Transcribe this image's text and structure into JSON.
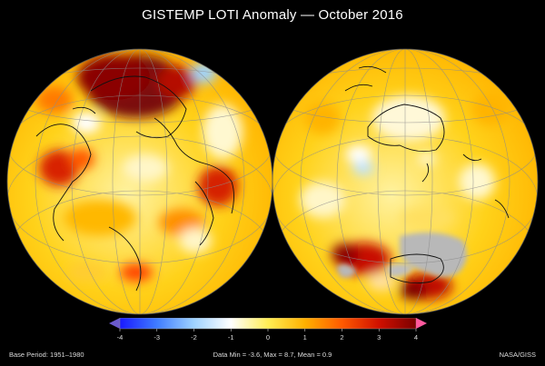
{
  "title": "GISTEMP LOTI Anomaly — October 2016",
  "colorbar": {
    "ticks": [
      "-4",
      "-3",
      "-2",
      "-1",
      "0",
      "1",
      "2",
      "3",
      "4"
    ],
    "stops": [
      "#1a1aff",
      "#3f7cff",
      "#9fd2ff",
      "#ffffff",
      "#ffee55",
      "#ffb000",
      "#ff5a00",
      "#d01000",
      "#7a0000"
    ],
    "under_color": "#6a5acd",
    "over_color": "#ff5a9e"
  },
  "footer": {
    "base_period": "Base Period: 1951–1980",
    "stats": "Data Min = -3.6, Max = 8.7, Mean = 0.9",
    "credit": "NASA/GISS"
  }
}
